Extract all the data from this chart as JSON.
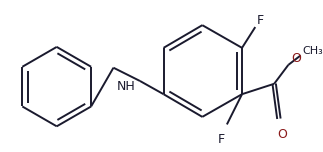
{
  "bg_color": "#ffffff",
  "bond_color": "#1a1a2e",
  "F_color": "#1a1a2e",
  "O_color": "#8b1a1a",
  "N_color": "#1a1a2e",
  "lw": 1.4,
  "figsize": [
    3.23,
    1.52
  ],
  "dpi": 100,
  "xlim": [
    0.0,
    3.23
  ],
  "ylim": [
    0.0,
    1.52
  ]
}
